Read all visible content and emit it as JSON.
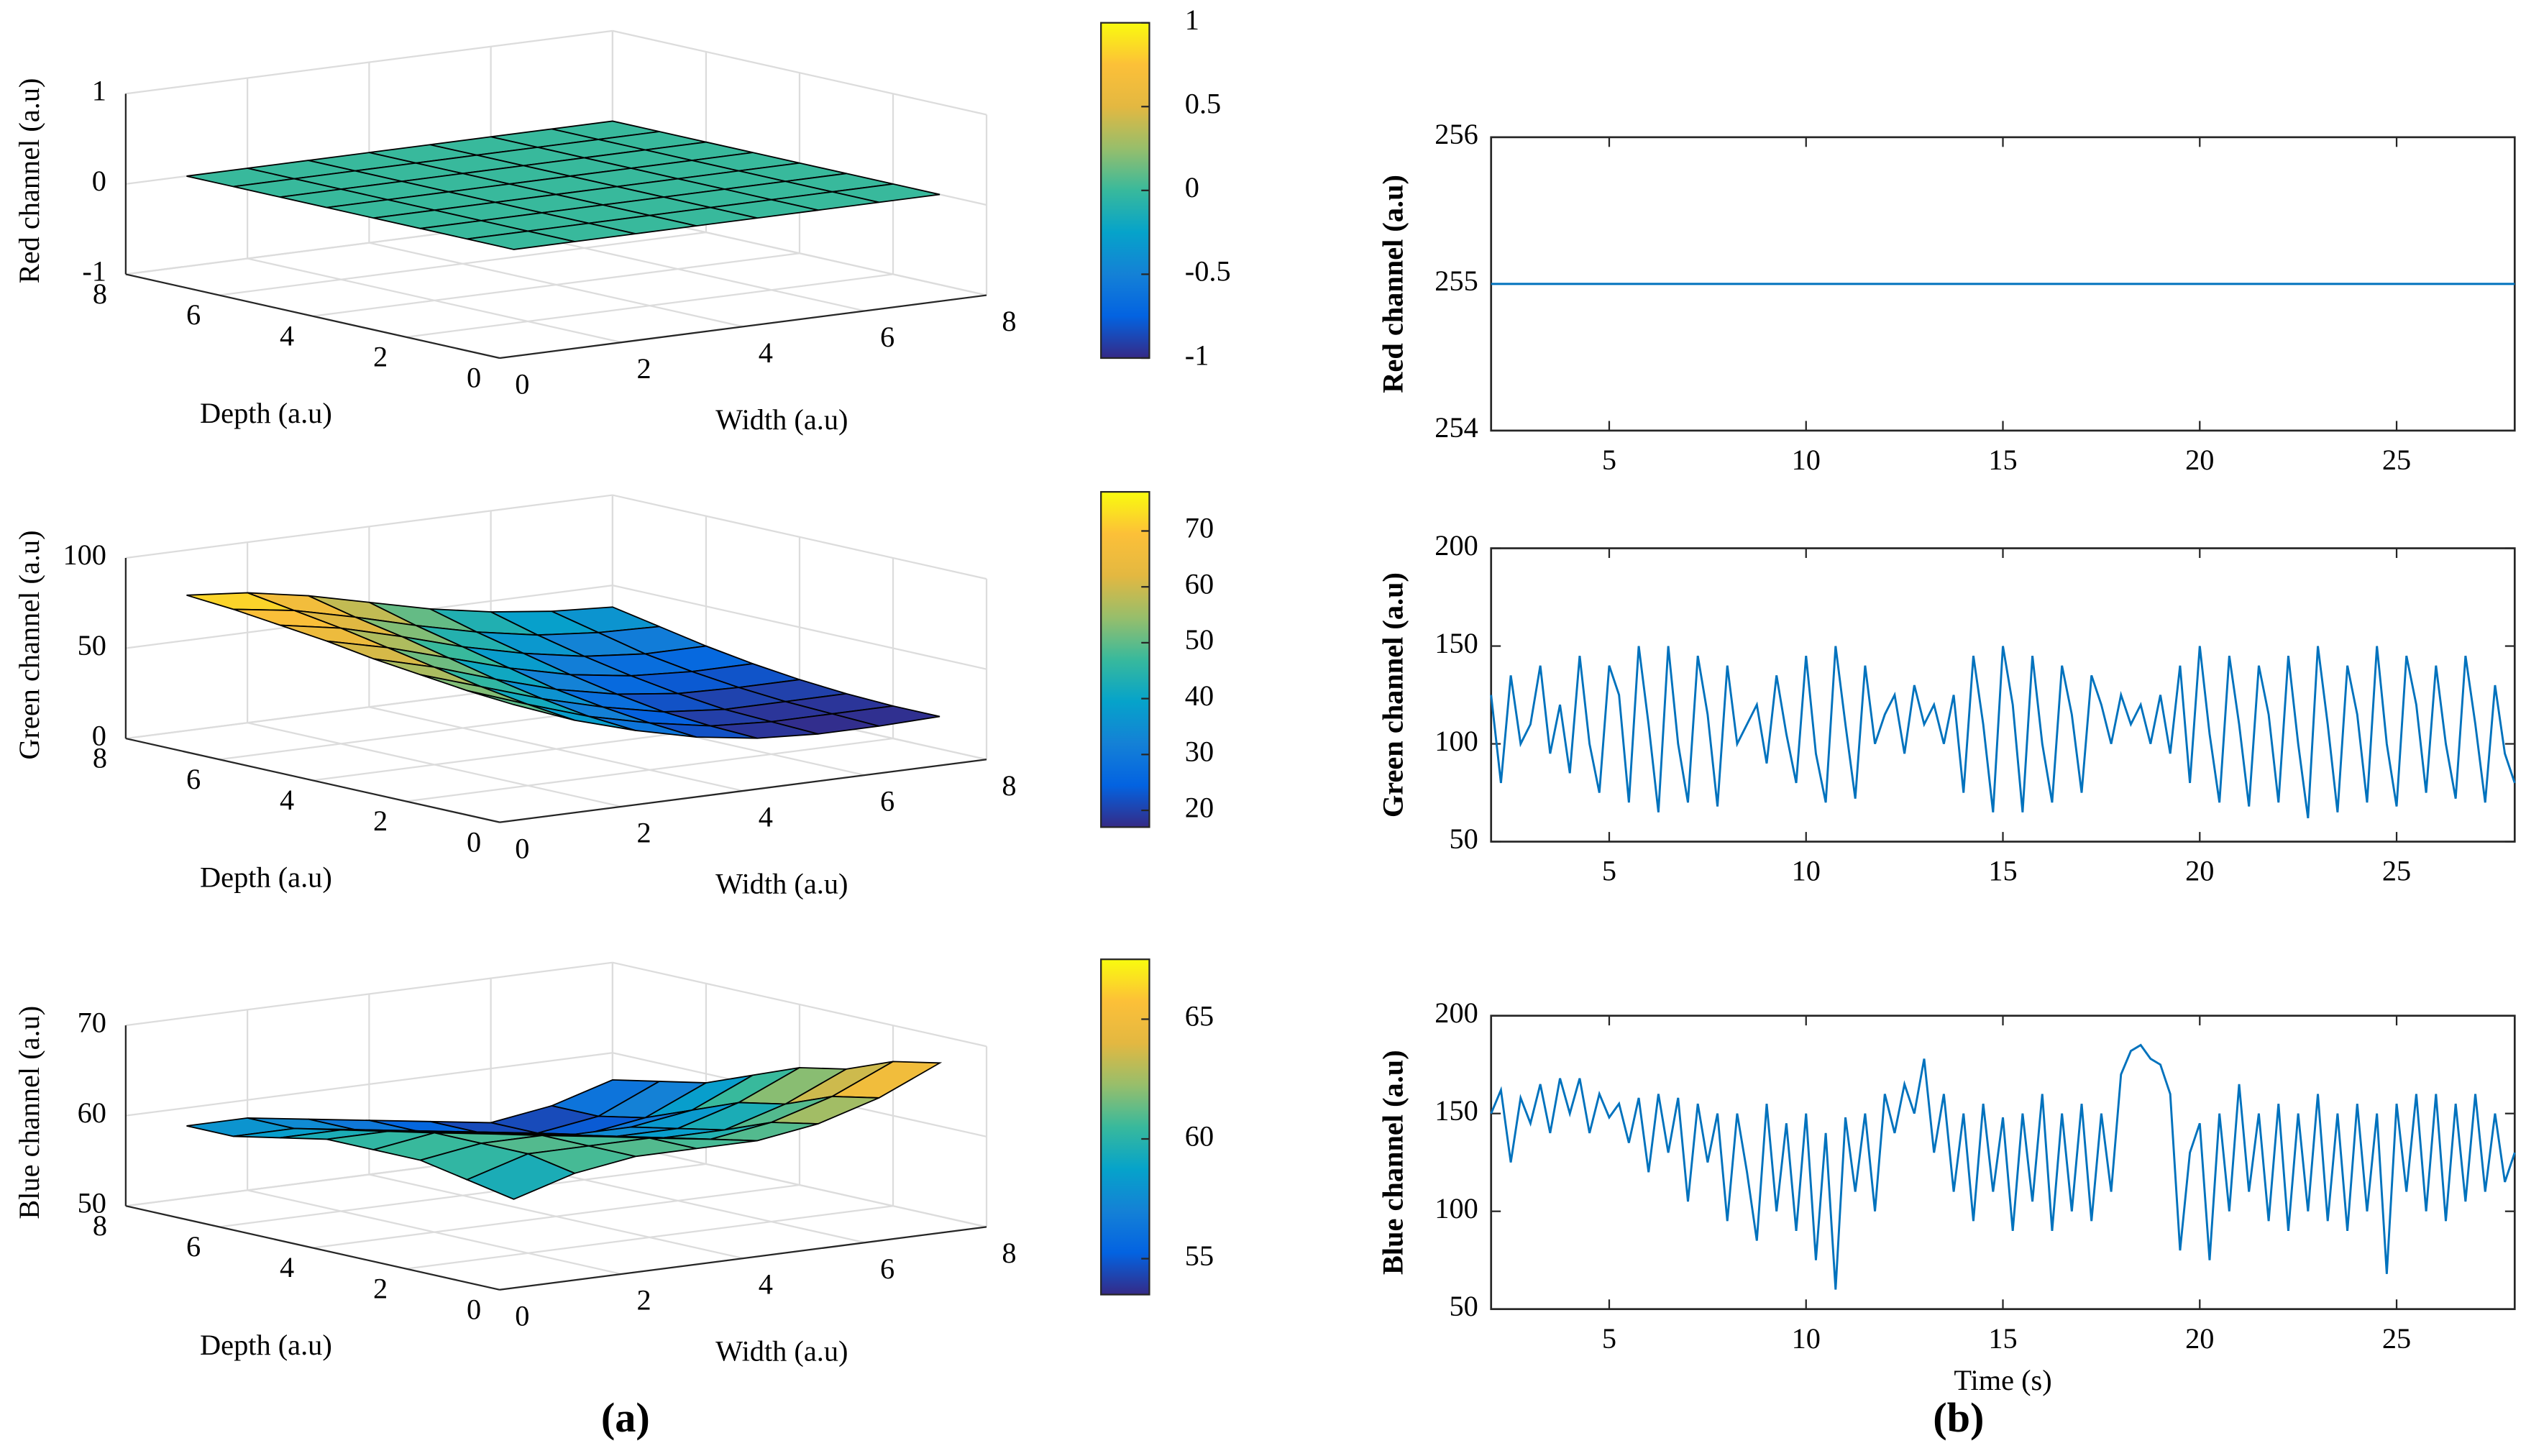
{
  "panel_labels": [
    "(a)",
    "(b)"
  ],
  "chart_data": [
    {
      "type": "surface",
      "zlabel": "Red channel (a.u)",
      "xlabel": "Width (a.u)",
      "ylabel": "Depth (a.u)",
      "x": [
        1,
        2,
        3,
        4,
        5,
        6,
        7,
        8
      ],
      "y": [
        1,
        2,
        3,
        4,
        5,
        6,
        7,
        8
      ],
      "z": [
        [
          0,
          0,
          0,
          0,
          0,
          0,
          0,
          0
        ],
        [
          0,
          0,
          0,
          0,
          0,
          0,
          0,
          0
        ],
        [
          0,
          0,
          0,
          0,
          0,
          0,
          0,
          0
        ],
        [
          0,
          0,
          0,
          0,
          0,
          0,
          0,
          0
        ],
        [
          0,
          0,
          0,
          0,
          0,
          0,
          0,
          0
        ],
        [
          0,
          0,
          0,
          0,
          0,
          0,
          0,
          0
        ],
        [
          0,
          0,
          0,
          0,
          0,
          0,
          0,
          0
        ],
        [
          0,
          0,
          0,
          0,
          0,
          0,
          0,
          0
        ]
      ],
      "xlim": [
        0,
        8
      ],
      "xticks": [
        0,
        2,
        4,
        6,
        8
      ],
      "ylim": [
        0,
        8
      ],
      "yticks": [
        0,
        2,
        4,
        6,
        8
      ],
      "zlim": [
        -1,
        1
      ],
      "zticks": [
        -1,
        0,
        1
      ],
      "clim": [
        -1,
        1
      ],
      "cticks": [
        -1,
        -0.5,
        0,
        0.5,
        1
      ],
      "grid": true
    },
    {
      "type": "surface",
      "zlabel": "Green channel (a.u)",
      "xlabel": "Width (a.u)",
      "ylabel": "Depth (a.u)",
      "x": [
        1,
        2,
        3,
        4,
        5,
        6,
        7,
        8
      ],
      "y": [
        1,
        2,
        3,
        4,
        5,
        6,
        7,
        8
      ],
      "z": [
        [
          55,
          42,
          32,
          24,
          19,
          17,
          17,
          18
        ],
        [
          57,
          45,
          34,
          26,
          20,
          18,
          18,
          18
        ],
        [
          60,
          49,
          38,
          29,
          22,
          19,
          19,
          19
        ],
        [
          63,
          54,
          43,
          33,
          26,
          22,
          21,
          21
        ],
        [
          67,
          59,
          49,
          39,
          31,
          26,
          24,
          24
        ],
        [
          70,
          64,
          55,
          45,
          37,
          31,
          28,
          28
        ],
        [
          73,
          68,
          60,
          51,
          43,
          37,
          34,
          33
        ],
        [
          75,
          72,
          66,
          58,
          50,
          44,
          40,
          38
        ]
      ],
      "xlim": [
        0,
        8
      ],
      "xticks": [
        0,
        2,
        4,
        6,
        8
      ],
      "ylim": [
        0,
        8
      ],
      "yticks": [
        0,
        2,
        4,
        6,
        8
      ],
      "zlim": [
        0,
        100
      ],
      "zticks": [
        0,
        50,
        100
      ],
      "clim": [
        17,
        77
      ],
      "cticks": [
        20,
        30,
        40,
        50,
        60,
        70
      ],
      "grid": true
    },
    {
      "type": "surface",
      "zlabel": "Blue channel (a.u)",
      "xlabel": "Width (a.u)",
      "ylabel": "Depth (a.u)",
      "x": [
        1,
        2,
        3,
        4,
        5,
        6,
        7,
        8
      ],
      "y": [
        1,
        2,
        3,
        4,
        5,
        6,
        7,
        8
      ],
      "z": [
        [
          58,
          60,
          61,
          61,
          61,
          62,
          64,
          67
        ],
        [
          59,
          61,
          61,
          61,
          60,
          61,
          63,
          66
        ],
        [
          60,
          61,
          61,
          60,
          59,
          59,
          61,
          64
        ],
        [
          60,
          61,
          60,
          59,
          58,
          58,
          60,
          63
        ],
        [
          60,
          60,
          59,
          58,
          57,
          57,
          58,
          61
        ],
        [
          59,
          59,
          58,
          57,
          56,
          55,
          56,
          59
        ],
        [
          58,
          58,
          57,
          56,
          55,
          54,
          55,
          58
        ],
        [
          58,
          58,
          57,
          56,
          55,
          54,
          55,
          57
        ]
      ],
      "xlim": [
        0,
        8
      ],
      "xticks": [
        0,
        2,
        4,
        6,
        8
      ],
      "ylim": [
        0,
        8
      ],
      "yticks": [
        0,
        2,
        4,
        6,
        8
      ],
      "zlim": [
        50,
        70
      ],
      "zticks": [
        50,
        60,
        70
      ],
      "clim": [
        53.5,
        67.5
      ],
      "cticks": [
        55,
        60,
        65
      ],
      "grid": true
    },
    {
      "type": "line",
      "ylabel": "Red channel (a.u)",
      "color": "#0072bd",
      "x": [
        2,
        28
      ],
      "values": [
        255,
        255
      ],
      "xlim": [
        2,
        28
      ],
      "xticks": [
        5,
        10,
        15,
        20,
        25
      ],
      "ylim": [
        254,
        256
      ],
      "yticks": [
        254,
        255,
        256
      ]
    },
    {
      "type": "line",
      "ylabel": "Green channel (a.u)",
      "color": "#0072bd",
      "x": [
        2,
        2.25,
        2.5,
        2.75,
        3,
        3.25,
        3.5,
        3.75,
        4,
        4.25,
        4.5,
        4.75,
        5,
        5.25,
        5.5,
        5.75,
        6,
        6.25,
        6.5,
        6.75,
        7,
        7.25,
        7.5,
        7.75,
        8,
        8.25,
        8.5,
        8.75,
        9,
        9.25,
        9.5,
        9.75,
        10,
        10.25,
        10.5,
        10.75,
        11,
        11.25,
        11.5,
        11.75,
        12,
        12.25,
        12.5,
        12.75,
        13,
        13.25,
        13.5,
        13.75,
        14,
        14.25,
        14.5,
        14.75,
        15,
        15.25,
        15.5,
        15.75,
        16,
        16.25,
        16.5,
        16.75,
        17,
        17.25,
        17.5,
        17.75,
        18,
        18.25,
        18.5,
        18.75,
        19,
        19.25,
        19.5,
        19.75,
        20,
        20.25,
        20.5,
        20.75,
        21,
        21.25,
        21.5,
        21.75,
        22,
        22.25,
        22.5,
        22.75,
        23,
        23.25,
        23.5,
        23.75,
        24,
        24.25,
        24.5,
        24.75,
        25,
        25.25,
        25.5,
        25.75,
        26,
        26.25,
        26.5,
        26.75,
        27,
        27.25,
        27.5,
        27.75,
        28
      ],
      "values": [
        125,
        80,
        135,
        100,
        110,
        140,
        95,
        120,
        85,
        145,
        100,
        75,
        140,
        125,
        70,
        150,
        110,
        65,
        150,
        100,
        70,
        145,
        115,
        68,
        140,
        100,
        110,
        120,
        90,
        135,
        105,
        80,
        145,
        95,
        70,
        150,
        110,
        72,
        140,
        100,
        115,
        125,
        95,
        130,
        110,
        120,
        100,
        125,
        75,
        145,
        110,
        65,
        150,
        120,
        65,
        145,
        100,
        70,
        140,
        115,
        75,
        135,
        120,
        100,
        125,
        110,
        120,
        100,
        125,
        95,
        140,
        80,
        150,
        105,
        70,
        145,
        110,
        68,
        140,
        115,
        70,
        145,
        100,
        62,
        150,
        110,
        65,
        140,
        115,
        70,
        150,
        100,
        68,
        145,
        120,
        75,
        140,
        100,
        72,
        145,
        110,
        70,
        130,
        95,
        80
      ],
      "xlim": [
        2,
        28
      ],
      "xticks": [
        5,
        10,
        15,
        20,
        25
      ],
      "ylim": [
        50,
        200
      ],
      "yticks": [
        50,
        100,
        150,
        200
      ]
    },
    {
      "type": "line",
      "ylabel": "Blue channel (a.u)",
      "xlabel": "Time (s)",
      "color": "#0072bd",
      "x": [
        2,
        2.25,
        2.5,
        2.75,
        3,
        3.25,
        3.5,
        3.75,
        4,
        4.25,
        4.5,
        4.75,
        5,
        5.25,
        5.5,
        5.75,
        6,
        6.25,
        6.5,
        6.75,
        7,
        7.25,
        7.5,
        7.75,
        8,
        8.25,
        8.5,
        8.75,
        9,
        9.25,
        9.5,
        9.75,
        10,
        10.25,
        10.5,
        10.75,
        11,
        11.25,
        11.5,
        11.75,
        12,
        12.25,
        12.5,
        12.75,
        13,
        13.25,
        13.5,
        13.75,
        14,
        14.25,
        14.5,
        14.75,
        15,
        15.25,
        15.5,
        15.75,
        16,
        16.25,
        16.5,
        16.75,
        17,
        17.25,
        17.5,
        17.75,
        18,
        18.25,
        18.5,
        18.75,
        19,
        19.25,
        19.5,
        19.75,
        20,
        20.25,
        20.5,
        20.75,
        21,
        21.25,
        21.5,
        21.75,
        22,
        22.25,
        22.5,
        22.75,
        23,
        23.25,
        23.5,
        23.75,
        24,
        24.25,
        24.5,
        24.75,
        25,
        25.25,
        25.5,
        25.75,
        26,
        26.25,
        26.5,
        26.75,
        27,
        27.25,
        27.5,
        27.75,
        28
      ],
      "values": [
        150,
        162,
        125,
        158,
        145,
        165,
        140,
        168,
        150,
        168,
        140,
        160,
        148,
        155,
        135,
        158,
        120,
        160,
        130,
        158,
        105,
        155,
        125,
        150,
        95,
        150,
        120,
        85,
        155,
        100,
        145,
        90,
        150,
        75,
        140,
        60,
        148,
        110,
        150,
        100,
        160,
        140,
        165,
        150,
        178,
        130,
        160,
        110,
        150,
        95,
        155,
        110,
        148,
        90,
        150,
        105,
        160,
        90,
        150,
        100,
        155,
        95,
        150,
        110,
        170,
        182,
        185,
        178,
        175,
        160,
        80,
        130,
        145,
        75,
        150,
        100,
        165,
        110,
        150,
        95,
        155,
        90,
        150,
        100,
        160,
        95,
        150,
        90,
        155,
        100,
        150,
        68,
        155,
        110,
        160,
        100,
        160,
        95,
        155,
        105,
        160,
        110,
        150,
        115,
        130
      ],
      "xlim": [
        2,
        28
      ],
      "xticks": [
        5,
        10,
        15,
        20,
        25
      ],
      "ylim": [
        50,
        200
      ],
      "yticks": [
        50,
        100,
        150,
        200
      ]
    }
  ]
}
